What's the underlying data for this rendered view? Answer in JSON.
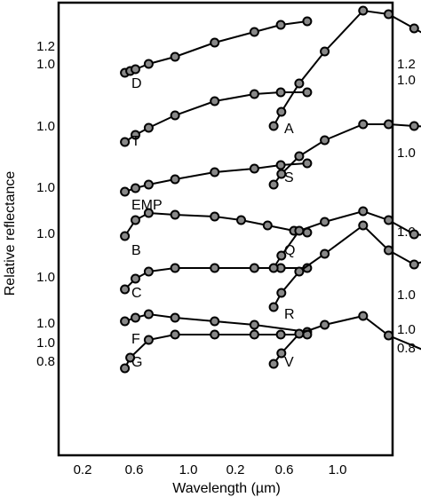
{
  "chart_data": {
    "type": "line",
    "title": "",
    "xlabel": "Wavelength (µm)",
    "ylabel": "Relative reflectance",
    "x_ticks": [
      "0.2",
      "0.6",
      "1.0",
      "0.2",
      "0.6",
      "1.0"
    ],
    "left_y_ticks": [
      "1.2",
      "1.0",
      "1.0",
      "1.0",
      "1.0",
      "1.0",
      "1.0",
      "1.0",
      "0.8"
    ],
    "right_y_ticks": [
      "1.2",
      "1.0",
      "1.0",
      "1.0",
      "1.0",
      "1.0",
      "0.8"
    ],
    "series": [
      {
        "name": "D",
        "panel": "left",
        "x": [
          0.36,
          0.38,
          0.4,
          0.45,
          0.55,
          0.7,
          0.85,
          0.95,
          1.05
        ],
        "y": [
          0.05,
          0.06,
          0.07,
          0.1,
          0.14,
          0.22,
          0.28,
          0.32,
          0.34
        ]
      },
      {
        "name": "T",
        "panel": "left",
        "x": [
          0.36,
          0.4,
          0.45,
          0.55,
          0.7,
          0.85,
          0.95,
          1.05
        ],
        "y": [
          0.05,
          0.09,
          0.13,
          0.2,
          0.28,
          0.32,
          0.33,
          0.33
        ]
      },
      {
        "name": "EMP",
        "panel": "left",
        "x": [
          0.36,
          0.4,
          0.45,
          0.55,
          0.7,
          0.85,
          0.95,
          1.05
        ],
        "y": [
          0.05,
          0.07,
          0.09,
          0.12,
          0.16,
          0.18,
          0.2,
          0.21
        ]
      },
      {
        "name": "B",
        "panel": "left",
        "x": [
          0.36,
          0.4,
          0.45,
          0.55,
          0.7,
          0.8,
          0.9,
          1.0,
          1.05
        ],
        "y": [
          0.05,
          0.14,
          0.18,
          0.17,
          0.16,
          0.14,
          0.11,
          0.08,
          0.07
        ]
      },
      {
        "name": "C",
        "panel": "left",
        "x": [
          0.36,
          0.4,
          0.45,
          0.55,
          0.7,
          0.85,
          0.95,
          1.05
        ],
        "y": [
          0.05,
          0.11,
          0.15,
          0.17,
          0.17,
          0.17,
          0.17,
          0.17
        ]
      },
      {
        "name": "F",
        "panel": "left",
        "x": [
          0.36,
          0.4,
          0.45,
          0.55,
          0.7,
          0.85,
          1.05
        ],
        "y": [
          0.07,
          0.09,
          0.11,
          0.09,
          0.07,
          0.05,
          0.01
        ]
      },
      {
        "name": "G",
        "panel": "left",
        "x": [
          0.36,
          0.38,
          0.45,
          0.55,
          0.7,
          0.85,
          0.95,
          1.05
        ],
        "y": [
          0.05,
          0.11,
          0.21,
          0.24,
          0.24,
          0.24,
          0.24,
          0.24
        ]
      },
      {
        "name": "A",
        "panel": "right",
        "x": [
          0.35,
          0.38,
          0.45,
          0.55,
          0.7,
          0.8,
          0.9,
          1.05
        ],
        "y": [
          0.05,
          0.13,
          0.29,
          0.47,
          0.7,
          0.68,
          0.6,
          0.48
        ]
      },
      {
        "name": "S",
        "panel": "right",
        "x": [
          0.35,
          0.38,
          0.45,
          0.55,
          0.7,
          0.8,
          0.9,
          1.05
        ],
        "y": [
          0.05,
          0.11,
          0.21,
          0.3,
          0.39,
          0.39,
          0.38,
          0.37
        ]
      },
      {
        "name": "Q",
        "panel": "right",
        "x": [
          0.35,
          0.38,
          0.45,
          0.55,
          0.7,
          0.8,
          0.9,
          1.05
        ],
        "y": [
          0.05,
          0.12,
          0.26,
          0.31,
          0.37,
          0.32,
          0.24,
          0.22
        ]
      },
      {
        "name": "R",
        "panel": "right",
        "x": [
          0.35,
          0.38,
          0.45,
          0.55,
          0.7,
          0.8,
          0.9,
          1.05
        ],
        "y": [
          0.05,
          0.13,
          0.25,
          0.35,
          0.51,
          0.37,
          0.29,
          0.36
        ]
      },
      {
        "name": "V",
        "panel": "right",
        "x": [
          0.35,
          0.38,
          0.45,
          0.55,
          0.7,
          0.8,
          0.95,
          1.05
        ],
        "y": [
          0.05,
          0.11,
          0.22,
          0.27,
          0.32,
          0.21,
          0.12,
          0.24
        ]
      }
    ]
  }
}
